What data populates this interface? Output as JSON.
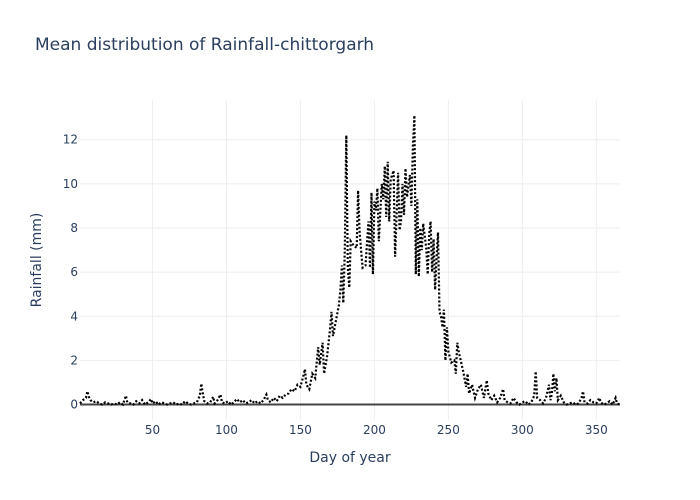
{
  "chart_data": {
    "type": "line",
    "title": "Mean distribution of Rainfall-chittorgarh",
    "xlabel": "Day of year",
    "ylabel": "Rainfall (mm)",
    "xlim": [
      1,
      366
    ],
    "ylim": [
      -0.7,
      13.8
    ],
    "x_ticks": [
      50,
      100,
      150,
      200,
      250,
      300,
      350
    ],
    "y_ticks": [
      0,
      2,
      4,
      6,
      8,
      10,
      12
    ],
    "grid": true,
    "line_color": "#000000",
    "line_style": "dotted",
    "series": [
      {
        "values": [
          [
            1,
            0.05
          ],
          [
            3,
            0.2
          ],
          [
            5,
            0.3
          ],
          [
            6,
            0.6
          ],
          [
            7,
            0.35
          ],
          [
            8,
            0.2
          ],
          [
            10,
            0.1
          ],
          [
            12,
            0.15
          ],
          [
            14,
            0.05
          ],
          [
            16,
            0.0
          ],
          [
            18,
            0.1
          ],
          [
            20,
            0.05
          ],
          [
            22,
            0.0
          ],
          [
            24,
            0.05
          ],
          [
            26,
            0.0
          ],
          [
            28,
            0.1
          ],
          [
            30,
            0.0
          ],
          [
            32,
            0.4
          ],
          [
            33,
            0.1
          ],
          [
            35,
            0.05
          ],
          [
            37,
            0.0
          ],
          [
            39,
            0.15
          ],
          [
            41,
            0.05
          ],
          [
            43,
            0.2
          ],
          [
            45,
            0.0
          ],
          [
            47,
            0.1
          ],
          [
            49,
            0.25
          ],
          [
            50,
            0.05
          ],
          [
            52,
            0.15
          ],
          [
            54,
            0.0
          ],
          [
            56,
            0.1
          ],
          [
            58,
            0.05
          ],
          [
            60,
            0.0
          ],
          [
            62,
            0.05
          ],
          [
            64,
            0.1
          ],
          [
            66,
            0.0
          ],
          [
            68,
            0.05
          ],
          [
            70,
            0.0
          ],
          [
            72,
            0.15
          ],
          [
            74,
            0.05
          ],
          [
            76,
            0.0
          ],
          [
            78,
            0.05
          ],
          [
            80,
            0.1
          ],
          [
            82,
            0.4
          ],
          [
            83,
            0.95
          ],
          [
            84,
            0.5
          ],
          [
            85,
            0.15
          ],
          [
            87,
            0.05
          ],
          [
            89,
            0.1
          ],
          [
            91,
            0.35
          ],
          [
            92,
            0.05
          ],
          [
            94,
            0.2
          ],
          [
            96,
            0.45
          ],
          [
            97,
            0.1
          ],
          [
            99,
            0.05
          ],
          [
            101,
            0.15
          ],
          [
            103,
            0.0
          ],
          [
            105,
            0.1
          ],
          [
            107,
            0.25
          ],
          [
            109,
            0.1
          ],
          [
            111,
            0.2
          ],
          [
            113,
            0.05
          ],
          [
            115,
            0.1
          ],
          [
            117,
            0.2
          ],
          [
            119,
            0.05
          ],
          [
            121,
            0.15
          ],
          [
            123,
            0.05
          ],
          [
            125,
            0.2
          ],
          [
            127,
            0.45
          ],
          [
            128,
            0.2
          ],
          [
            130,
            0.1
          ],
          [
            132,
            0.3
          ],
          [
            134,
            0.15
          ],
          [
            136,
            0.4
          ],
          [
            138,
            0.3
          ],
          [
            140,
            0.45
          ],
          [
            142,
            0.5
          ],
          [
            144,
            0.7
          ],
          [
            146,
            0.6
          ],
          [
            148,
            0.9
          ],
          [
            150,
            0.8
          ],
          [
            152,
            1.3
          ],
          [
            153,
            1.6
          ],
          [
            154,
            0.9
          ],
          [
            156,
            0.7
          ],
          [
            158,
            1.4
          ],
          [
            160,
            1.2
          ],
          [
            162,
            2.6
          ],
          [
            163,
            1.8
          ],
          [
            165,
            2.8
          ],
          [
            166,
            1.4
          ],
          [
            168,
            2.2
          ],
          [
            170,
            3.4
          ],
          [
            171,
            4.2
          ],
          [
            172,
            3.1
          ],
          [
            174,
            3.8
          ],
          [
            176,
            4.5
          ],
          [
            177,
            5.2
          ],
          [
            178,
            6.3
          ],
          [
            179,
            4.6
          ],
          [
            180,
            7.0
          ],
          [
            181,
            12.2
          ],
          [
            182,
            6.2
          ],
          [
            183,
            5.3
          ],
          [
            184,
            7.4
          ],
          [
            186,
            7.2
          ],
          [
            188,
            7.1
          ],
          [
            189,
            9.7
          ],
          [
            190,
            7.8
          ],
          [
            192,
            6.2
          ],
          [
            194,
            6.3
          ],
          [
            196,
            8.3
          ],
          [
            197,
            6.2
          ],
          [
            198,
            9.6
          ],
          [
            199,
            5.9
          ],
          [
            200,
            9.2
          ],
          [
            201,
            8.8
          ],
          [
            202,
            9.8
          ],
          [
            203,
            7.4
          ],
          [
            205,
            10.0
          ],
          [
            206,
            9.3
          ],
          [
            207,
            10.8
          ],
          [
            208,
            8.5
          ],
          [
            209,
            11.0
          ],
          [
            210,
            8.3
          ],
          [
            211,
            10.2
          ],
          [
            213,
            10.6
          ],
          [
            214,
            6.7
          ],
          [
            215,
            8.6
          ],
          [
            216,
            10.5
          ],
          [
            217,
            7.9
          ],
          [
            218,
            8.3
          ],
          [
            219,
            10.0
          ],
          [
            220,
            8.6
          ],
          [
            221,
            10.7
          ],
          [
            222,
            9.4
          ],
          [
            223,
            9.9
          ],
          [
            224,
            10.4
          ],
          [
            225,
            9.0
          ],
          [
            226,
            11.7
          ],
          [
            227,
            13.1
          ],
          [
            228,
            5.9
          ],
          [
            229,
            9.3
          ],
          [
            230,
            5.8
          ],
          [
            231,
            8.0
          ],
          [
            232,
            7.0
          ],
          [
            233,
            8.2
          ],
          [
            235,
            7.1
          ],
          [
            236,
            5.9
          ],
          [
            237,
            7.7
          ],
          [
            238,
            8.3
          ],
          [
            239,
            6.0
          ],
          [
            240,
            7.5
          ],
          [
            241,
            5.2
          ],
          [
            242,
            6.6
          ],
          [
            243,
            7.8
          ],
          [
            244,
            4.2
          ],
          [
            245,
            4.0
          ],
          [
            246,
            3.5
          ],
          [
            247,
            4.3
          ],
          [
            248,
            2.0
          ],
          [
            249,
            3.5
          ],
          [
            250,
            2.4
          ],
          [
            252,
            1.9
          ],
          [
            254,
            2.0
          ],
          [
            255,
            1.4
          ],
          [
            256,
            2.8
          ],
          [
            257,
            2.4
          ],
          [
            258,
            2.1
          ],
          [
            260,
            1.5
          ],
          [
            262,
            0.8
          ],
          [
            263,
            1.4
          ],
          [
            264,
            0.5
          ],
          [
            266,
            0.9
          ],
          [
            268,
            0.3
          ],
          [
            270,
            0.7
          ],
          [
            272,
            0.9
          ],
          [
            274,
            0.3
          ],
          [
            276,
            1.1
          ],
          [
            277,
            0.5
          ],
          [
            279,
            0.2
          ],
          [
            281,
            0.4
          ],
          [
            283,
            0.1
          ],
          [
            285,
            0.3
          ],
          [
            287,
            0.7
          ],
          [
            288,
            0.2
          ],
          [
            290,
            0.1
          ],
          [
            292,
            0.05
          ],
          [
            294,
            0.3
          ],
          [
            296,
            0.1
          ],
          [
            298,
            0.0
          ],
          [
            300,
            0.1
          ],
          [
            302,
            0.15
          ],
          [
            304,
            0.0
          ],
          [
            306,
            0.1
          ],
          [
            308,
            0.4
          ],
          [
            309,
            1.5
          ],
          [
            310,
            0.3
          ],
          [
            312,
            0.2
          ],
          [
            314,
            0.05
          ],
          [
            316,
            0.3
          ],
          [
            318,
            0.9
          ],
          [
            319,
            0.2
          ],
          [
            320,
            0.5
          ],
          [
            321,
            1.4
          ],
          [
            322,
            0.6
          ],
          [
            323,
            1.2
          ],
          [
            324,
            0.2
          ],
          [
            326,
            0.4
          ],
          [
            328,
            0.1
          ],
          [
            330,
            0.0
          ],
          [
            332,
            0.05
          ],
          [
            334,
            0.1
          ],
          [
            336,
            0.0
          ],
          [
            338,
            0.05
          ],
          [
            340,
            0.3
          ],
          [
            341,
            0.6
          ],
          [
            342,
            0.1
          ],
          [
            344,
            0.05
          ],
          [
            346,
            0.2
          ],
          [
            348,
            0.1
          ],
          [
            350,
            0.05
          ],
          [
            352,
            0.3
          ],
          [
            353,
            0.1
          ],
          [
            355,
            0.0
          ],
          [
            357,
            0.05
          ],
          [
            359,
            0.15
          ],
          [
            361,
            0.0
          ],
          [
            363,
            0.3
          ],
          [
            364,
            0.05
          ],
          [
            366,
            0.0
          ]
        ]
      }
    ]
  }
}
